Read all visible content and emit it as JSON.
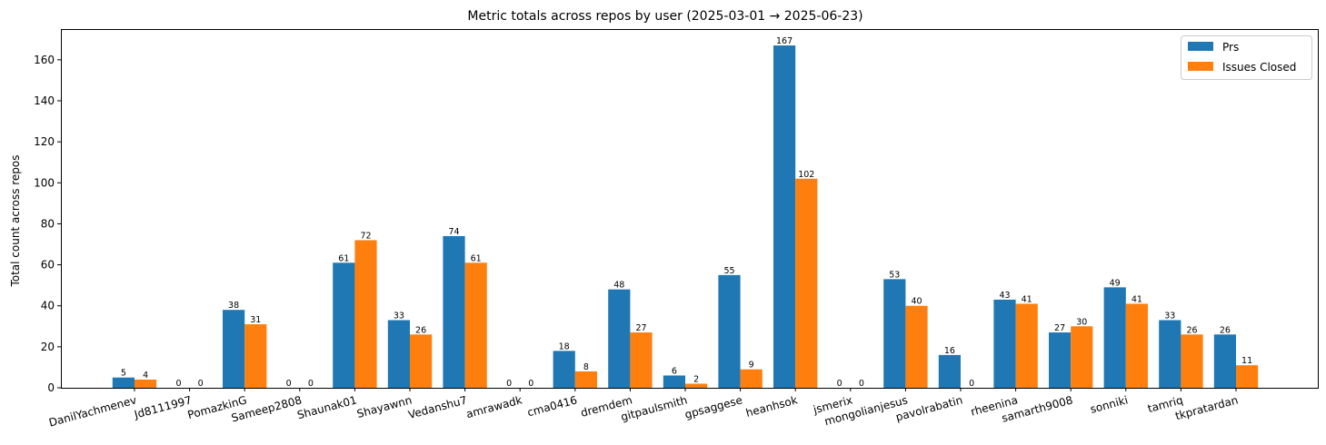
{
  "chart_data": {
    "type": "bar",
    "title": "Metric totals across repos by user (2025-03-01 → 2025-06-23)",
    "xlabel": "",
    "ylabel": "Total count across repos",
    "ylim": [
      0,
      175
    ],
    "yticks": [
      0,
      20,
      40,
      60,
      80,
      100,
      120,
      140,
      160
    ],
    "grid": false,
    "legend_position": "top-right",
    "categories": [
      "DanilYachmenev",
      "Jd8111997",
      "PomazkinG",
      "Sameep2808",
      "Shaunak01",
      "Shayawnn",
      "Vedanshu7",
      "amrawadk",
      "cma0416",
      "dremdem",
      "gitpaulsmith",
      "gpsaggese",
      "heanhsok",
      "jsmerix",
      "mongolianjesus",
      "pavolrabatin",
      "rheenina",
      "samarth9008",
      "sonniki",
      "tamriq",
      "tkpratardan"
    ],
    "series": [
      {
        "name": "Prs",
        "color": "#1f77b4",
        "values": [
          5,
          0,
          38,
          0,
          61,
          33,
          74,
          0,
          18,
          48,
          6,
          55,
          167,
          0,
          53,
          16,
          43,
          27,
          49,
          33,
          26
        ]
      },
      {
        "name": "Issues Closed",
        "color": "#ff7f0e",
        "values": [
          4,
          0,
          31,
          0,
          72,
          26,
          61,
          0,
          8,
          27,
          2,
          9,
          102,
          0,
          40,
          0,
          41,
          30,
          41,
          26,
          11
        ]
      }
    ]
  }
}
